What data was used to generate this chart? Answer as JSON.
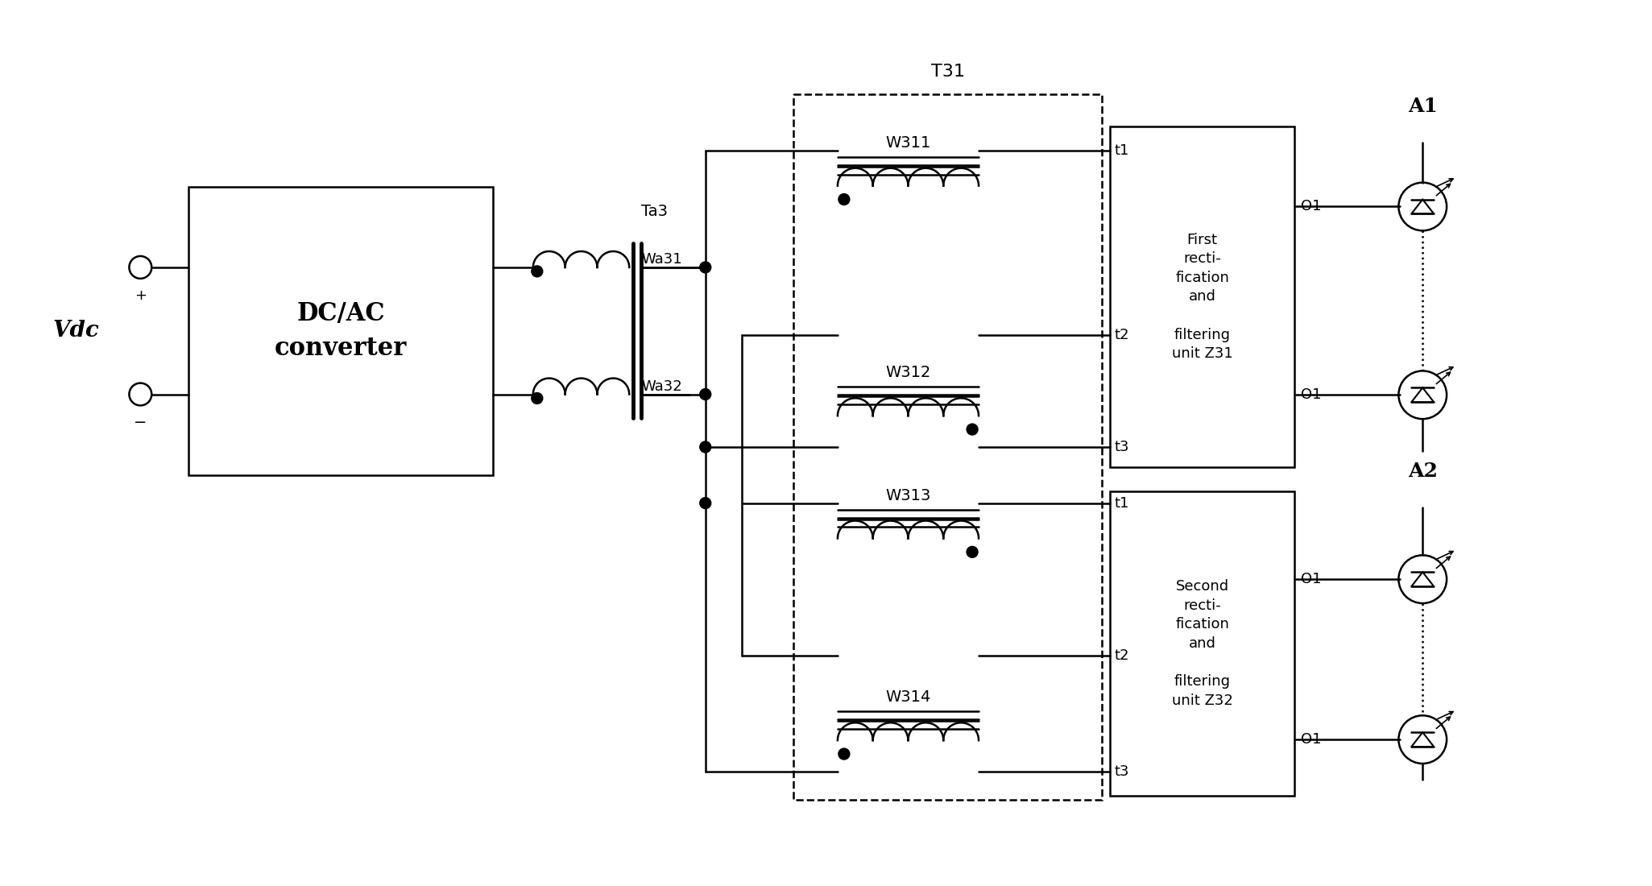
{
  "bg": "#ffffff",
  "lc": "#000000",
  "fig_w": 20.51,
  "fig_h": 11.0,
  "dpi": 100,
  "vdc": "Vdc",
  "dcac": "DC/AC\nconverter",
  "t31": "T31",
  "ta3": "Ta3",
  "wa31": "Wa31",
  "wa32": "Wa32",
  "w311": "W311",
  "w312": "W312",
  "w313": "W313",
  "w314": "W314",
  "z31_text": "First\nrecti-\nfication\nand\n \nfiltering\nunit Z31",
  "z32_text": "Second\nrecti-\nfication\nand\n \nfiltering\nunit Z32",
  "a1": "A1",
  "a2": "A2",
  "o1": "O1"
}
